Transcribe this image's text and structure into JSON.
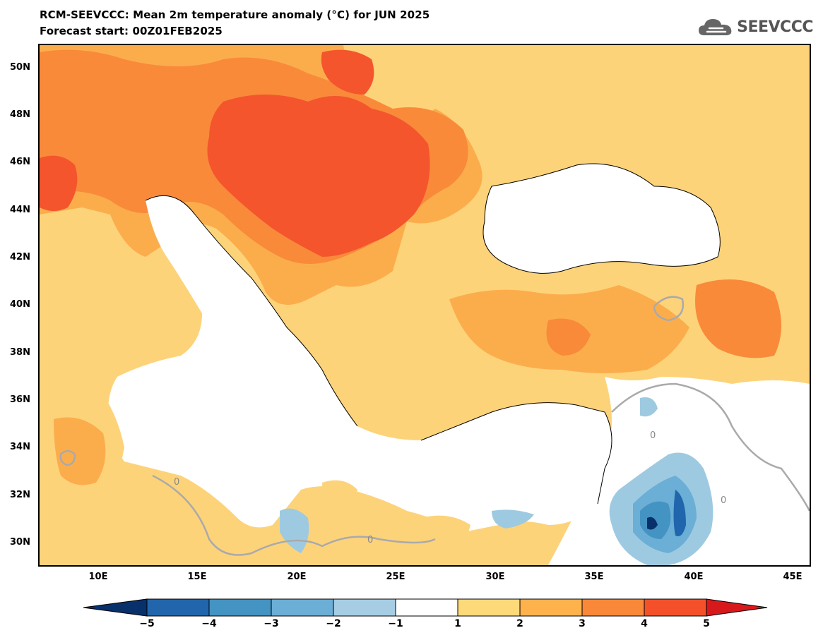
{
  "header": {
    "title_line1": "RCM-SEEVCCC: Mean 2m temperature anomaly (°C) for JUN 2025",
    "title_line2": "Forecast start: 00Z01FEB2025",
    "logo_text": "SEEVCCC",
    "logo_icon": "cloud-icon"
  },
  "map": {
    "projection": "lat-lon",
    "lon_range": [
      "7E",
      "46E"
    ],
    "lat_range": [
      "29N",
      "51N"
    ],
    "lat_ticks": [
      "50N",
      "48N",
      "46N",
      "44N",
      "42N",
      "40N",
      "38N",
      "36N",
      "34N",
      "32N",
      "30N"
    ],
    "lon_ticks": [
      "10E",
      "15E",
      "20E",
      "25E",
      "30E",
      "35E",
      "40E",
      "45E"
    ],
    "contour_label": "0"
  },
  "colorbar": {
    "labels": [
      "−5",
      "−4",
      "−3",
      "−2",
      "−1",
      "1",
      "2",
      "3",
      "4",
      "5"
    ],
    "colors": [
      "#08306b",
      "#2166ac",
      "#4393c3",
      "#6baed6",
      "#a6cde3",
      "#ffffff",
      "#fdd97a",
      "#fdb24b",
      "#f98838",
      "#f4512b",
      "#d7191c"
    ]
  }
}
